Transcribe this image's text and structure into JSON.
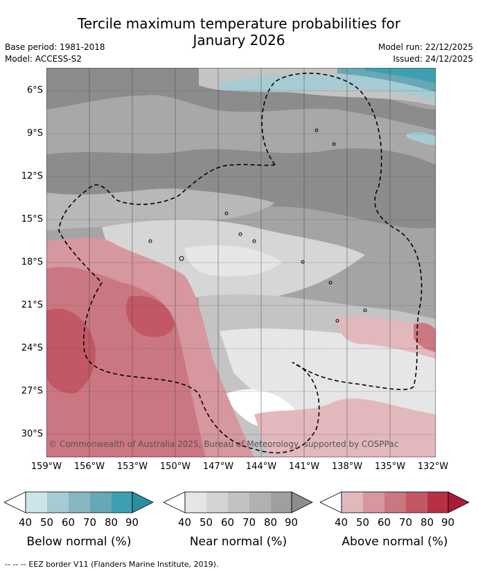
{
  "header": {
    "title_line1": "Tercile maximum temperature probabilities for",
    "title_line2": "January 2026",
    "base_period": "Base period: 1981-2018",
    "model": "Model: ACCESS-S2",
    "model_run": "Model run: 22/12/2025",
    "issued": "Issued: 24/12/2025"
  },
  "map": {
    "lat_ticks": [
      "6°S",
      "9°S",
      "12°S",
      "15°S",
      "18°S",
      "21°S",
      "24°S",
      "27°S",
      "30°S"
    ],
    "lon_ticks": [
      "159°W",
      "156°W",
      "153°W",
      "150°W",
      "147°W",
      "144°W",
      "141°W",
      "138°W",
      "135°W",
      "132°W"
    ],
    "copyright": "© Commonwealth of Australia 2025, Bureau of Meteorology, supported by COSPPac"
  },
  "legends": [
    {
      "name": "below",
      "label": "Below normal (%)",
      "colors": [
        "#cde4ea",
        "#a7cbd3",
        "#88b6c1",
        "#68a8b6",
        "#3e9fb0",
        "#2a8fa3"
      ],
      "ticks": [
        "40",
        "50",
        "60",
        "70",
        "80",
        "90"
      ]
    },
    {
      "name": "near",
      "label": "Near normal (%)",
      "colors": [
        "#e6e6e6",
        "#d4d4d4",
        "#c2c2c2",
        "#b1b1b1",
        "#9f9f9f",
        "#8c8c8c"
      ],
      "ticks": [
        "40",
        "50",
        "60",
        "70",
        "80",
        "90"
      ]
    },
    {
      "name": "above",
      "label": "Above normal (%)",
      "colors": [
        "#e2b8bd",
        "#d6979e",
        "#cb7781",
        "#c25766",
        "#b83046",
        "#a81c39"
      ],
      "ticks": [
        "40",
        "50",
        "60",
        "70",
        "80",
        "90"
      ]
    }
  ],
  "footnote": "--  --  -- EEZ border V11 (Flanders Marine Institute, 2019)."
}
